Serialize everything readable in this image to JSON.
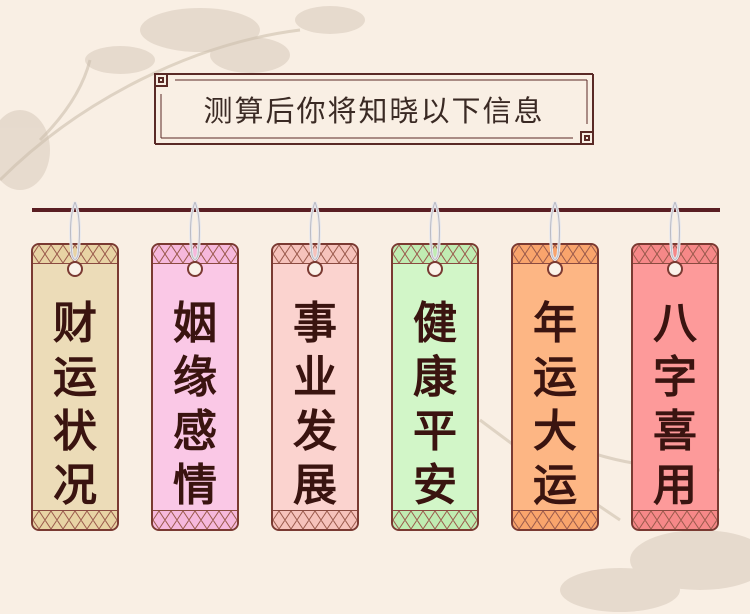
{
  "title": "测算后你将知晓以下信息",
  "tags": [
    {
      "text": "财运状况",
      "color": "#ecdcb8",
      "band": "#e8d3a4"
    },
    {
      "text": "姻缘感情",
      "color": "#fac8e6",
      "band": "#f6b8dc"
    },
    {
      "text": "事业发展",
      "color": "#fbd3cf",
      "band": "#f6c2bb"
    },
    {
      "text": "健康平安",
      "color": "#d2f6c8",
      "band": "#c0ecb2"
    },
    {
      "text": "年运大运",
      "color": "#fdb684",
      "band": "#f9a46c"
    },
    {
      "text": "八字喜用",
      "color": "#fd9a9a",
      "band": "#f68888"
    }
  ],
  "colors": {
    "background": "#f9efe4",
    "rod": "#5a1e22",
    "border": "#7a3a32",
    "text": "#3a1410"
  }
}
